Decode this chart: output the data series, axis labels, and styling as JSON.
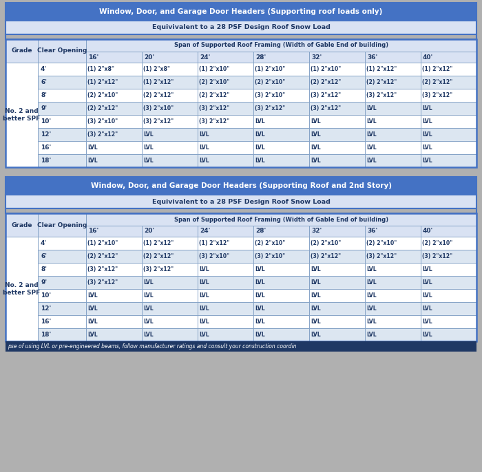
{
  "bg_color": "#b0b0b0",
  "table1_title": "Window, Door, and Garage Door Headers (Supporting roof loads only)",
  "table1_subtitle": "Equivivalent to a 28 PSF Design Roof Snow Load",
  "table2_title": "Window, Door, and Garage Door Headers (Supporting Roof and 2nd Story)",
  "table2_subtitle": "Equivivalent to a 28 PSF Design Roof Snow Load",
  "footer": "pse of using LVL or pre-engineered beams, follow manufacturer ratings and consult your construction coordin",
  "grade_label": "No. 2 and\nbetter SPF",
  "span_labels": [
    "16'",
    "20'",
    "24'",
    "28'",
    "32'",
    "36'",
    "40'"
  ],
  "table1_rows": [
    [
      "4'",
      "(1) 2\"x8\"",
      "(1) 2\"x8\"",
      "(1) 2\"x10\"",
      "(1) 2\"x10\"",
      "(1) 2\"x10\"",
      "(1) 2\"x12\"",
      "(1) 2\"x12\""
    ],
    [
      "6'",
      "(1) 2\"x12\"",
      "(1) 2\"x12\"",
      "(2) 2\"x10\"",
      "(2) 2\"x10\"",
      "(2) 2\"x12\"",
      "(2) 2\"x12\"",
      "(2) 2\"x12\""
    ],
    [
      "8'",
      "(2) 2\"x10\"",
      "(2) 2\"x12\"",
      "(2) 2\"x12\"",
      "(3) 2\"x10\"",
      "(3) 2\"x12\"",
      "(3) 2\"x12\"",
      "(3) 2\"x12\""
    ],
    [
      "9'",
      "(2) 2\"x12\"",
      "(3) 2\"x10\"",
      "(3) 2\"x12\"",
      "(3) 2\"x12\"",
      "(3) 2\"x12\"",
      "LVL",
      "LVL"
    ],
    [
      "10'",
      "(3) 2\"x10\"",
      "(3) 2\"x12\"",
      "(3) 2\"x12\"",
      "LVL",
      "LVL",
      "LVL",
      "LVL"
    ],
    [
      "12'",
      "(3) 2\"x12\"",
      "LVL",
      "LVL",
      "LVL",
      "LVL",
      "LVL",
      "LVL"
    ],
    [
      "16'",
      "LVL",
      "LVL",
      "LVL",
      "LVL",
      "LVL",
      "LVL",
      "LVL"
    ],
    [
      "18'",
      "LVL",
      "LVL",
      "LVL",
      "LVL",
      "LVL",
      "LVL",
      "LVL"
    ]
  ],
  "table2_rows": [
    [
      "4'",
      "(1) 2\"x10\"",
      "(1) 2\"x12\"",
      "(1) 2\"x12\"",
      "(2) 2\"x10\"",
      "(2) 2\"x10\"",
      "(2) 2\"x10\"",
      "(2) 2\"x10\""
    ],
    [
      "6'",
      "(2) 2\"x12\"",
      "(2) 2\"x12\"",
      "(3) 2\"x10\"",
      "(3) 2\"x10\"",
      "(3) 2\"x12\"",
      "(3) 2\"x12\"",
      "(3) 2\"x12\""
    ],
    [
      "8'",
      "(3) 2\"x12\"",
      "(3) 2\"x12\"",
      "LVL",
      "LVL",
      "LVL",
      "LVL",
      "LVL"
    ],
    [
      "9'",
      "(3) 2\"x12\"",
      "LVL",
      "LVL",
      "LVL",
      "LVL",
      "LVL",
      "LVL"
    ],
    [
      "10'",
      "LVL",
      "LVL",
      "LVL",
      "LVL",
      "LVL",
      "LVL",
      "LVL"
    ],
    [
      "12'",
      "LVL",
      "LVL",
      "LVL",
      "LVL",
      "LVL",
      "LVL",
      "LVL"
    ],
    [
      "16'",
      "LVL",
      "LVL",
      "LVL",
      "LVL",
      "LVL",
      "LVL",
      "LVL"
    ],
    [
      "18'",
      "LVL",
      "LVL",
      "LVL",
      "LVL",
      "LVL",
      "LVL",
      "LVL"
    ]
  ],
  "title_bg": "#4472c4",
  "title_text_color": "#ffffff",
  "subtitle_bg": "#d9e2f3",
  "subtitle_text_color": "#1f3864",
  "header_bg": "#d9e2f3",
  "header_text_color": "#1f3864",
  "row_bg_white": "#ffffff",
  "row_bg_blue": "#dce6f1",
  "cell_text_color": "#1f3864",
  "border_color": "#7f9ec4",
  "outer_border_color": "#4472c4",
  "footer_bg": "#1f3864",
  "footer_text_color": "#ffffff",
  "gap_bg": "#b8c8d8"
}
